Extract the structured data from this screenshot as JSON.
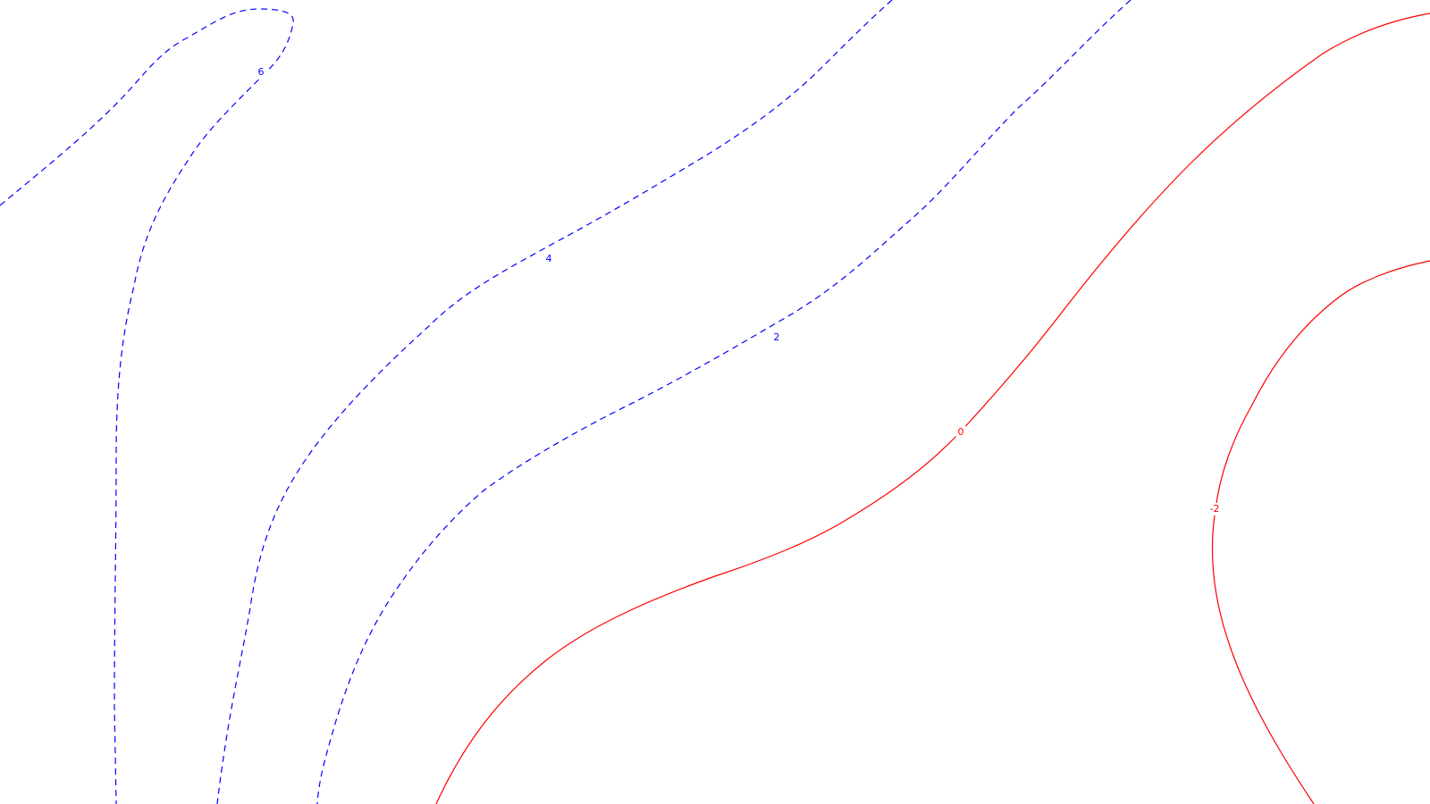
{
  "chart_data": {
    "type": "contour",
    "colors": {
      "positive": "#0000ff",
      "negative": "#ff0000",
      "background": "#ffffff"
    },
    "positive_line_style": "dashed",
    "zero_and_negative_line_style": "solid",
    "levels": [
      {
        "value": 6,
        "label": "6",
        "sign": "positive"
      },
      {
        "value": 4,
        "label": "4",
        "sign": "positive"
      },
      {
        "value": 2,
        "label": "2",
        "sign": "positive"
      },
      {
        "value": 0,
        "label": "0",
        "sign": "zero"
      },
      {
        "value": -2,
        "label": "-2",
        "sign": "negative"
      }
    ]
  }
}
